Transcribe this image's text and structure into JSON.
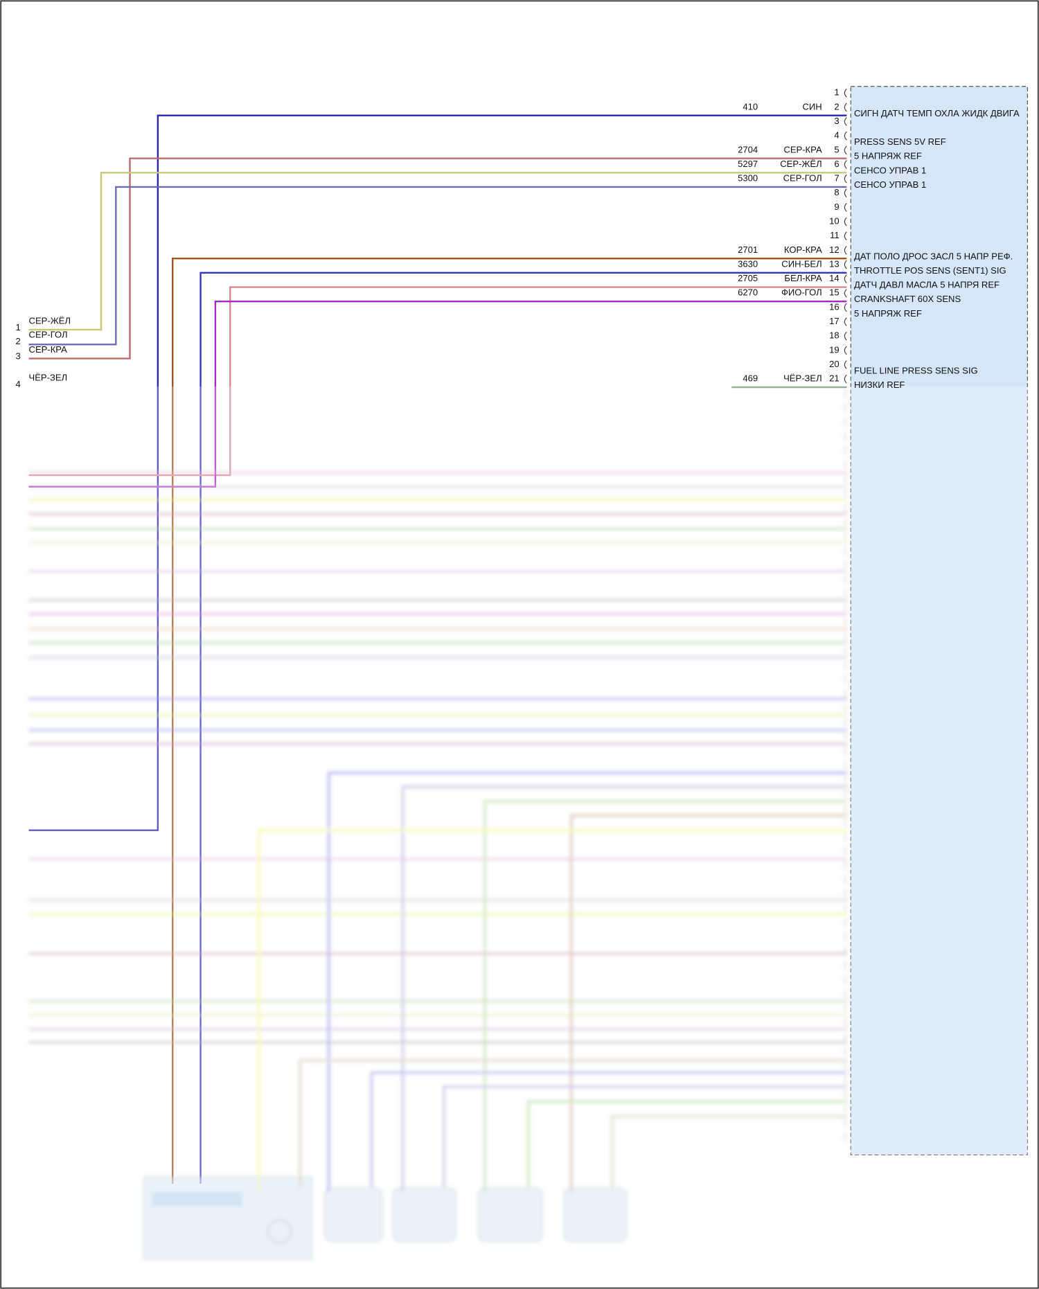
{
  "connector": {
    "pins": [
      {
        "pin": 1
      },
      {
        "pin": 2,
        "wire": "410",
        "color": "СИН",
        "label": "СИГН ДАТЧ ТЕМП ОХЛА ЖИДК ДВИГА",
        "stroke": "#2626b0"
      },
      {
        "pin": 3
      },
      {
        "pin": 4,
        "label": "PRESS SENS 5V REF"
      },
      {
        "pin": 5,
        "wire": "2704",
        "color": "СЕР-КРА",
        "label": "5 НАПРЯЖ REF",
        "stroke": "#c06a6a"
      },
      {
        "pin": 6,
        "wire": "5297",
        "color": "СЕР-ЖЁЛ",
        "label": "СЕНСО УПРАВ 1",
        "stroke": "#c8c878"
      },
      {
        "pin": 7,
        "wire": "5300",
        "color": "СЕР-ГОЛ",
        "label": "СЕНСО УПРАВ 1",
        "stroke": "#6a6ab4"
      },
      {
        "pin": 8
      },
      {
        "pin": 9
      },
      {
        "pin": 10
      },
      {
        "pin": 11
      },
      {
        "pin": 12,
        "wire": "2701",
        "color": "КОР-КРА",
        "label": "ДАТ ПОЛО ДРОС ЗАСЛ 5 НАПР РЕФ.",
        "stroke": "#a0521a"
      },
      {
        "pin": 13,
        "wire": "3630",
        "color": "СИН-БЕЛ",
        "label": "THROTTLE POS SENS (SENT1) SIG",
        "stroke": "#3434c4"
      },
      {
        "pin": 14,
        "wire": "2705",
        "color": "БЕЛ-КРА",
        "label": "ДАТЧ ДАВЛ МАСЛА 5 НАПРЯ REF",
        "stroke": "#d48a8a"
      },
      {
        "pin": 15,
        "wire": "6270",
        "color": "ФИО-ГОЛ",
        "label": "CRANKSHAFT 60X SENS",
        "stroke": "#a826c4"
      },
      {
        "pin": 16,
        "label": "5 НАПРЯЖ REF"
      },
      {
        "pin": 17
      },
      {
        "pin": 18
      },
      {
        "pin": 19
      },
      {
        "pin": 20,
        "label": "FUEL LINE PRESS SENS SIG"
      },
      {
        "pin": 21,
        "wire": "469",
        "color": "ЧЁР-ЗЕЛ",
        "label": "НИЗКИ REF",
        "stroke": "#6a9a6a"
      }
    ]
  },
  "left_connector": {
    "pins": [
      {
        "pin": 1,
        "color": "СЕР-ЖЁЛ"
      },
      {
        "pin": 2,
        "color": "СЕР-ГОЛ"
      },
      {
        "pin": 3,
        "color": "СЕР-КРА"
      },
      {
        "pin": 4,
        "color": "ЧЁР-ЗЕЛ"
      }
    ]
  }
}
